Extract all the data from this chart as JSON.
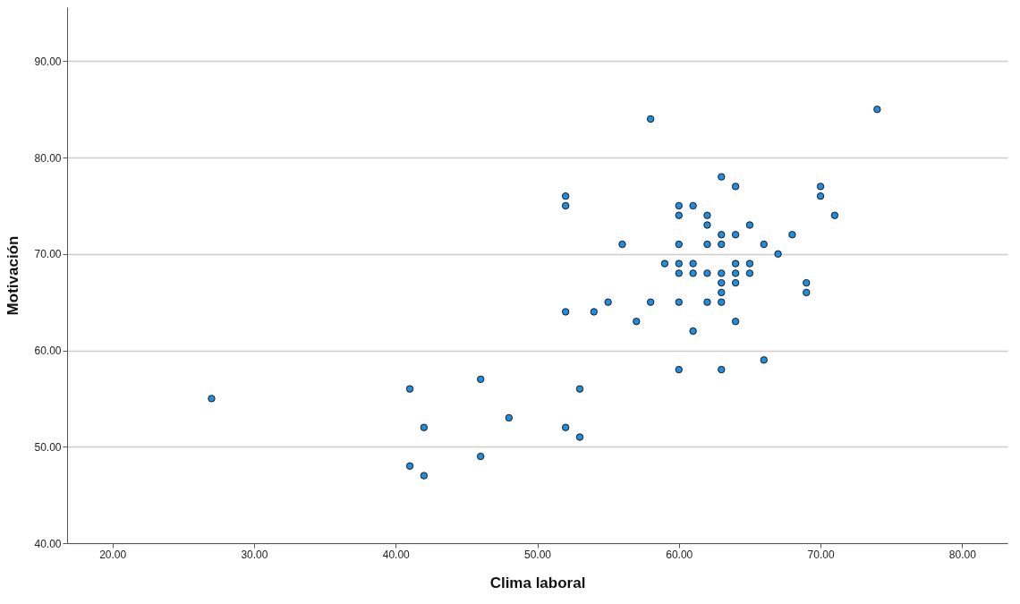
{
  "chart_data": {
    "type": "scatter",
    "xlabel": "Clima laboral",
    "ylabel": "Motivación",
    "xlim": [
      16.8,
      83.2
    ],
    "ylim": [
      40,
      95.6
    ],
    "xticks": [
      {
        "value": 20,
        "label": "20.00"
      },
      {
        "value": 30,
        "label": "30.00"
      },
      {
        "value": 40,
        "label": "40.00"
      },
      {
        "value": 50,
        "label": "50.00"
      },
      {
        "value": 60,
        "label": "60.00"
      },
      {
        "value": 70,
        "label": "70.00"
      },
      {
        "value": 80,
        "label": "80.00"
      }
    ],
    "yticks": [
      {
        "value": 40,
        "label": "40.00"
      },
      {
        "value": 50,
        "label": "50.00"
      },
      {
        "value": 60,
        "label": "60.00"
      },
      {
        "value": 70,
        "label": "70.00"
      },
      {
        "value": 80,
        "label": "80.00"
      },
      {
        "value": 90,
        "label": "90.00"
      }
    ],
    "grid": "y",
    "marker": "circle",
    "series": [
      {
        "color": "#1f8ee0",
        "x": [
          27,
          41,
          41,
          42,
          42,
          46,
          46,
          48,
          52,
          52,
          52,
          52,
          53,
          53,
          54,
          55,
          56,
          57,
          58,
          58,
          59,
          60,
          60,
          60,
          60,
          60,
          60,
          60,
          61,
          61,
          61,
          61,
          62,
          62,
          62,
          62,
          62,
          63,
          63,
          63,
          63,
          63,
          63,
          63,
          63,
          64,
          64,
          64,
          64,
          64,
          64,
          65,
          65,
          65,
          66,
          66,
          67,
          68,
          69,
          69,
          70,
          70,
          71,
          74
        ],
        "values": [
          55,
          56,
          48,
          52,
          47,
          57,
          49,
          53,
          76,
          75,
          64,
          52,
          56,
          51,
          64,
          65,
          71,
          63,
          84,
          65,
          69,
          75,
          74,
          71,
          69,
          68,
          65,
          58,
          75,
          69,
          68,
          62,
          74,
          73,
          71,
          68,
          65,
          78,
          72,
          71,
          68,
          67,
          66,
          65,
          58,
          77,
          72,
          69,
          68,
          67,
          63,
          73,
          69,
          68,
          71,
          59,
          70,
          72,
          67,
          66,
          77,
          76,
          74,
          85
        ]
      }
    ]
  }
}
